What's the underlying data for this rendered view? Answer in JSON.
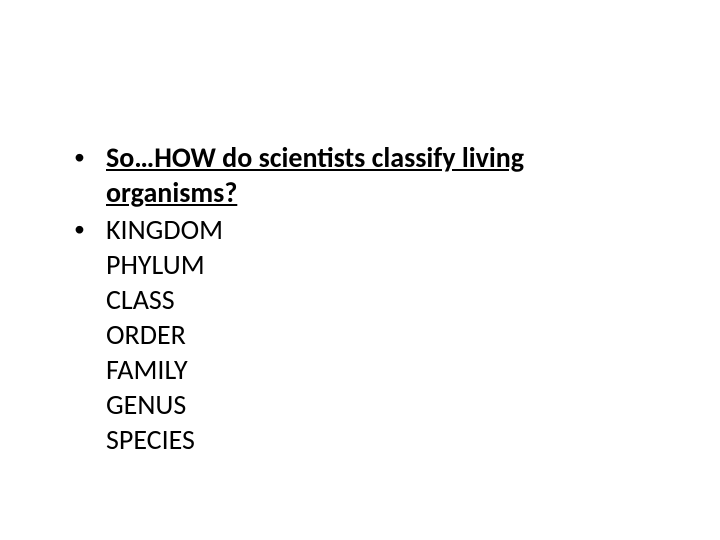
{
  "slide": {
    "background_color": "#ffffff",
    "text_color": "#000000",
    "font_family": "Calibri",
    "base_font_size_pt": 21,
    "bullets": [
      {
        "type": "heading",
        "bold": true,
        "underline": true,
        "text": "So…HOW do scientists classify living organisms?"
      },
      {
        "type": "list",
        "ranks": [
          "KINGDOM",
          "PHYLUM",
          "CLASS",
          "ORDER",
          "FAMILY",
          "GENUS",
          "SPECIES"
        ]
      }
    ]
  }
}
